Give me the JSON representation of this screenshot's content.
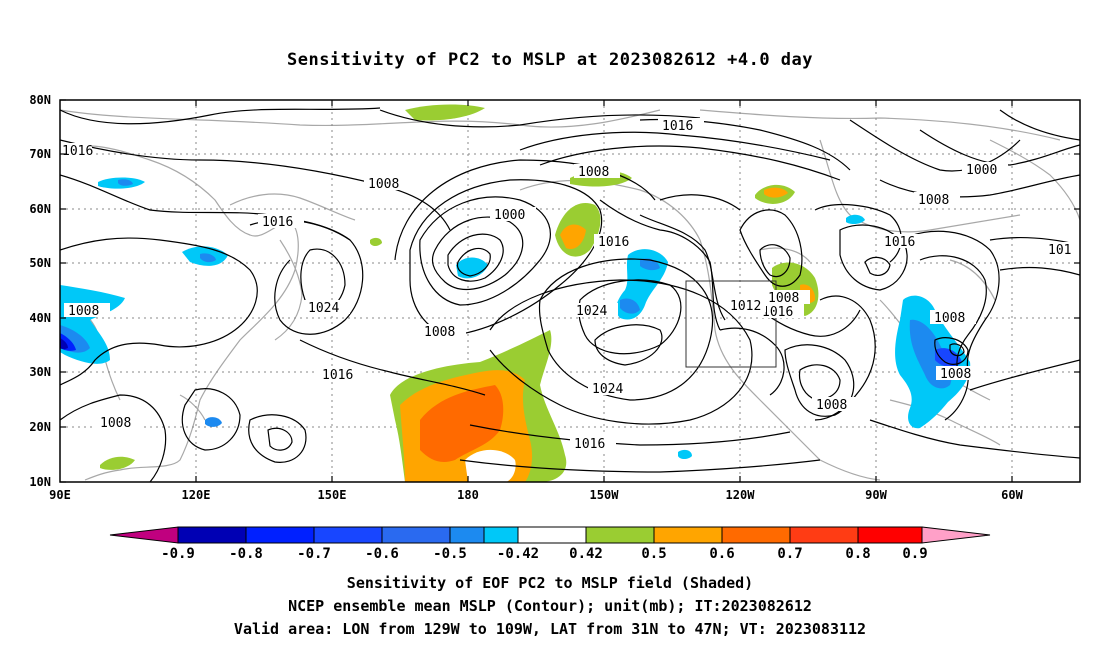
{
  "title": "Sensitivity of PC2 to MSLP at 2023082612 +4.0 day",
  "lat_ticks": [
    "80N",
    "70N",
    "60N",
    "50N",
    "40N",
    "30N",
    "20N",
    "10N"
  ],
  "lon_ticks": [
    "90E",
    "120E",
    "150E",
    "180",
    "150W",
    "120W",
    "90W",
    "60W"
  ],
  "contour_labels": [
    "1016",
    "1016",
    "1008",
    "1008",
    "1000",
    "1016",
    "1016",
    "1024",
    "1008",
    "1008",
    "1016",
    "1024",
    "1024",
    "1016",
    "1008",
    "1000",
    "1008",
    "1016",
    "101",
    "1008",
    "1016",
    "1012",
    "1008",
    "1008",
    "1008"
  ],
  "colorbar": {
    "labels": [
      "-0.9",
      "-0.8",
      "-0.7",
      "-0.6",
      "-0.5",
      "-0.42",
      "0.42",
      "0.5",
      "0.6",
      "0.7",
      "0.8",
      "0.9"
    ],
    "colors": [
      "#c0007f",
      "#0000b4",
      "#0020ff",
      "#1846ff",
      "#2a6af0",
      "#1c8af0",
      "#00c8f8",
      "#ffffff",
      "#9acd32",
      "#ffa500",
      "#ff6a00",
      "#ff3c14",
      "#ff0000",
      "#ffa0c8"
    ]
  },
  "captions": [
    "Sensitivity of EOF PC2 to MSLP field (Shaded)",
    "NCEP ensemble mean MSLP (Contour); unit(mb); IT:2023082612",
    "Valid area: LON from 129W to 109W, LAT from 31N to 47N; VT: 2023083112"
  ]
}
